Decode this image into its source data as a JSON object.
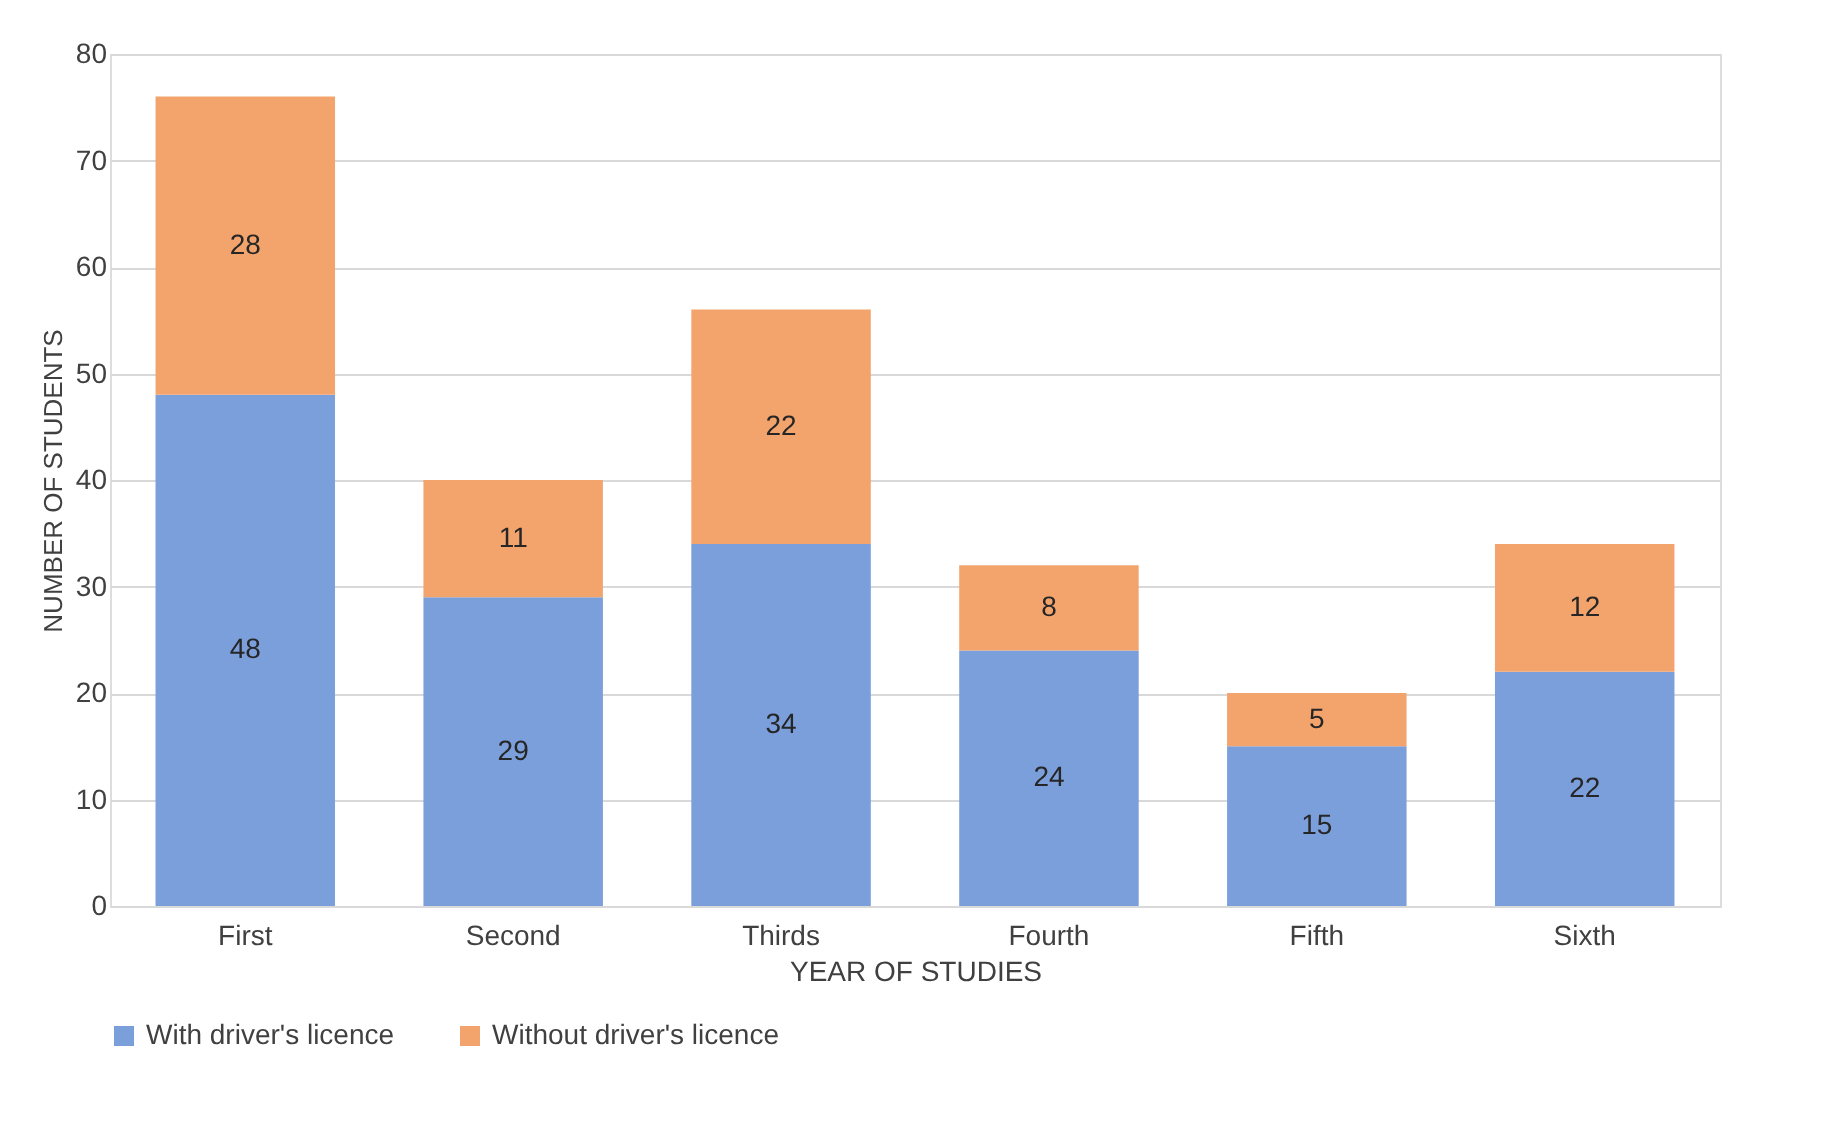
{
  "chart_data": {
    "type": "bar",
    "stacked": true,
    "xlabel": "YEAR OF STUDIES",
    "ylabel": "NUMBER OF STUDENTS",
    "categories": [
      "First",
      "Second",
      "Thirds",
      "Fourth",
      "Fifth",
      "Sixth"
    ],
    "series": [
      {
        "name": "With driver's licence",
        "color": "#7b9fdb",
        "values": [
          48,
          29,
          34,
          24,
          15,
          22
        ]
      },
      {
        "name": "Without driver's licence",
        "color": "#f3a46d",
        "values": [
          28,
          11,
          22,
          8,
          5,
          12
        ]
      }
    ],
    "ylim": [
      0,
      80
    ],
    "yticks": [
      0,
      10,
      20,
      30,
      40,
      50,
      60,
      70,
      80
    ],
    "grid": "y",
    "legend": "bottom",
    "data_labels": true
  }
}
